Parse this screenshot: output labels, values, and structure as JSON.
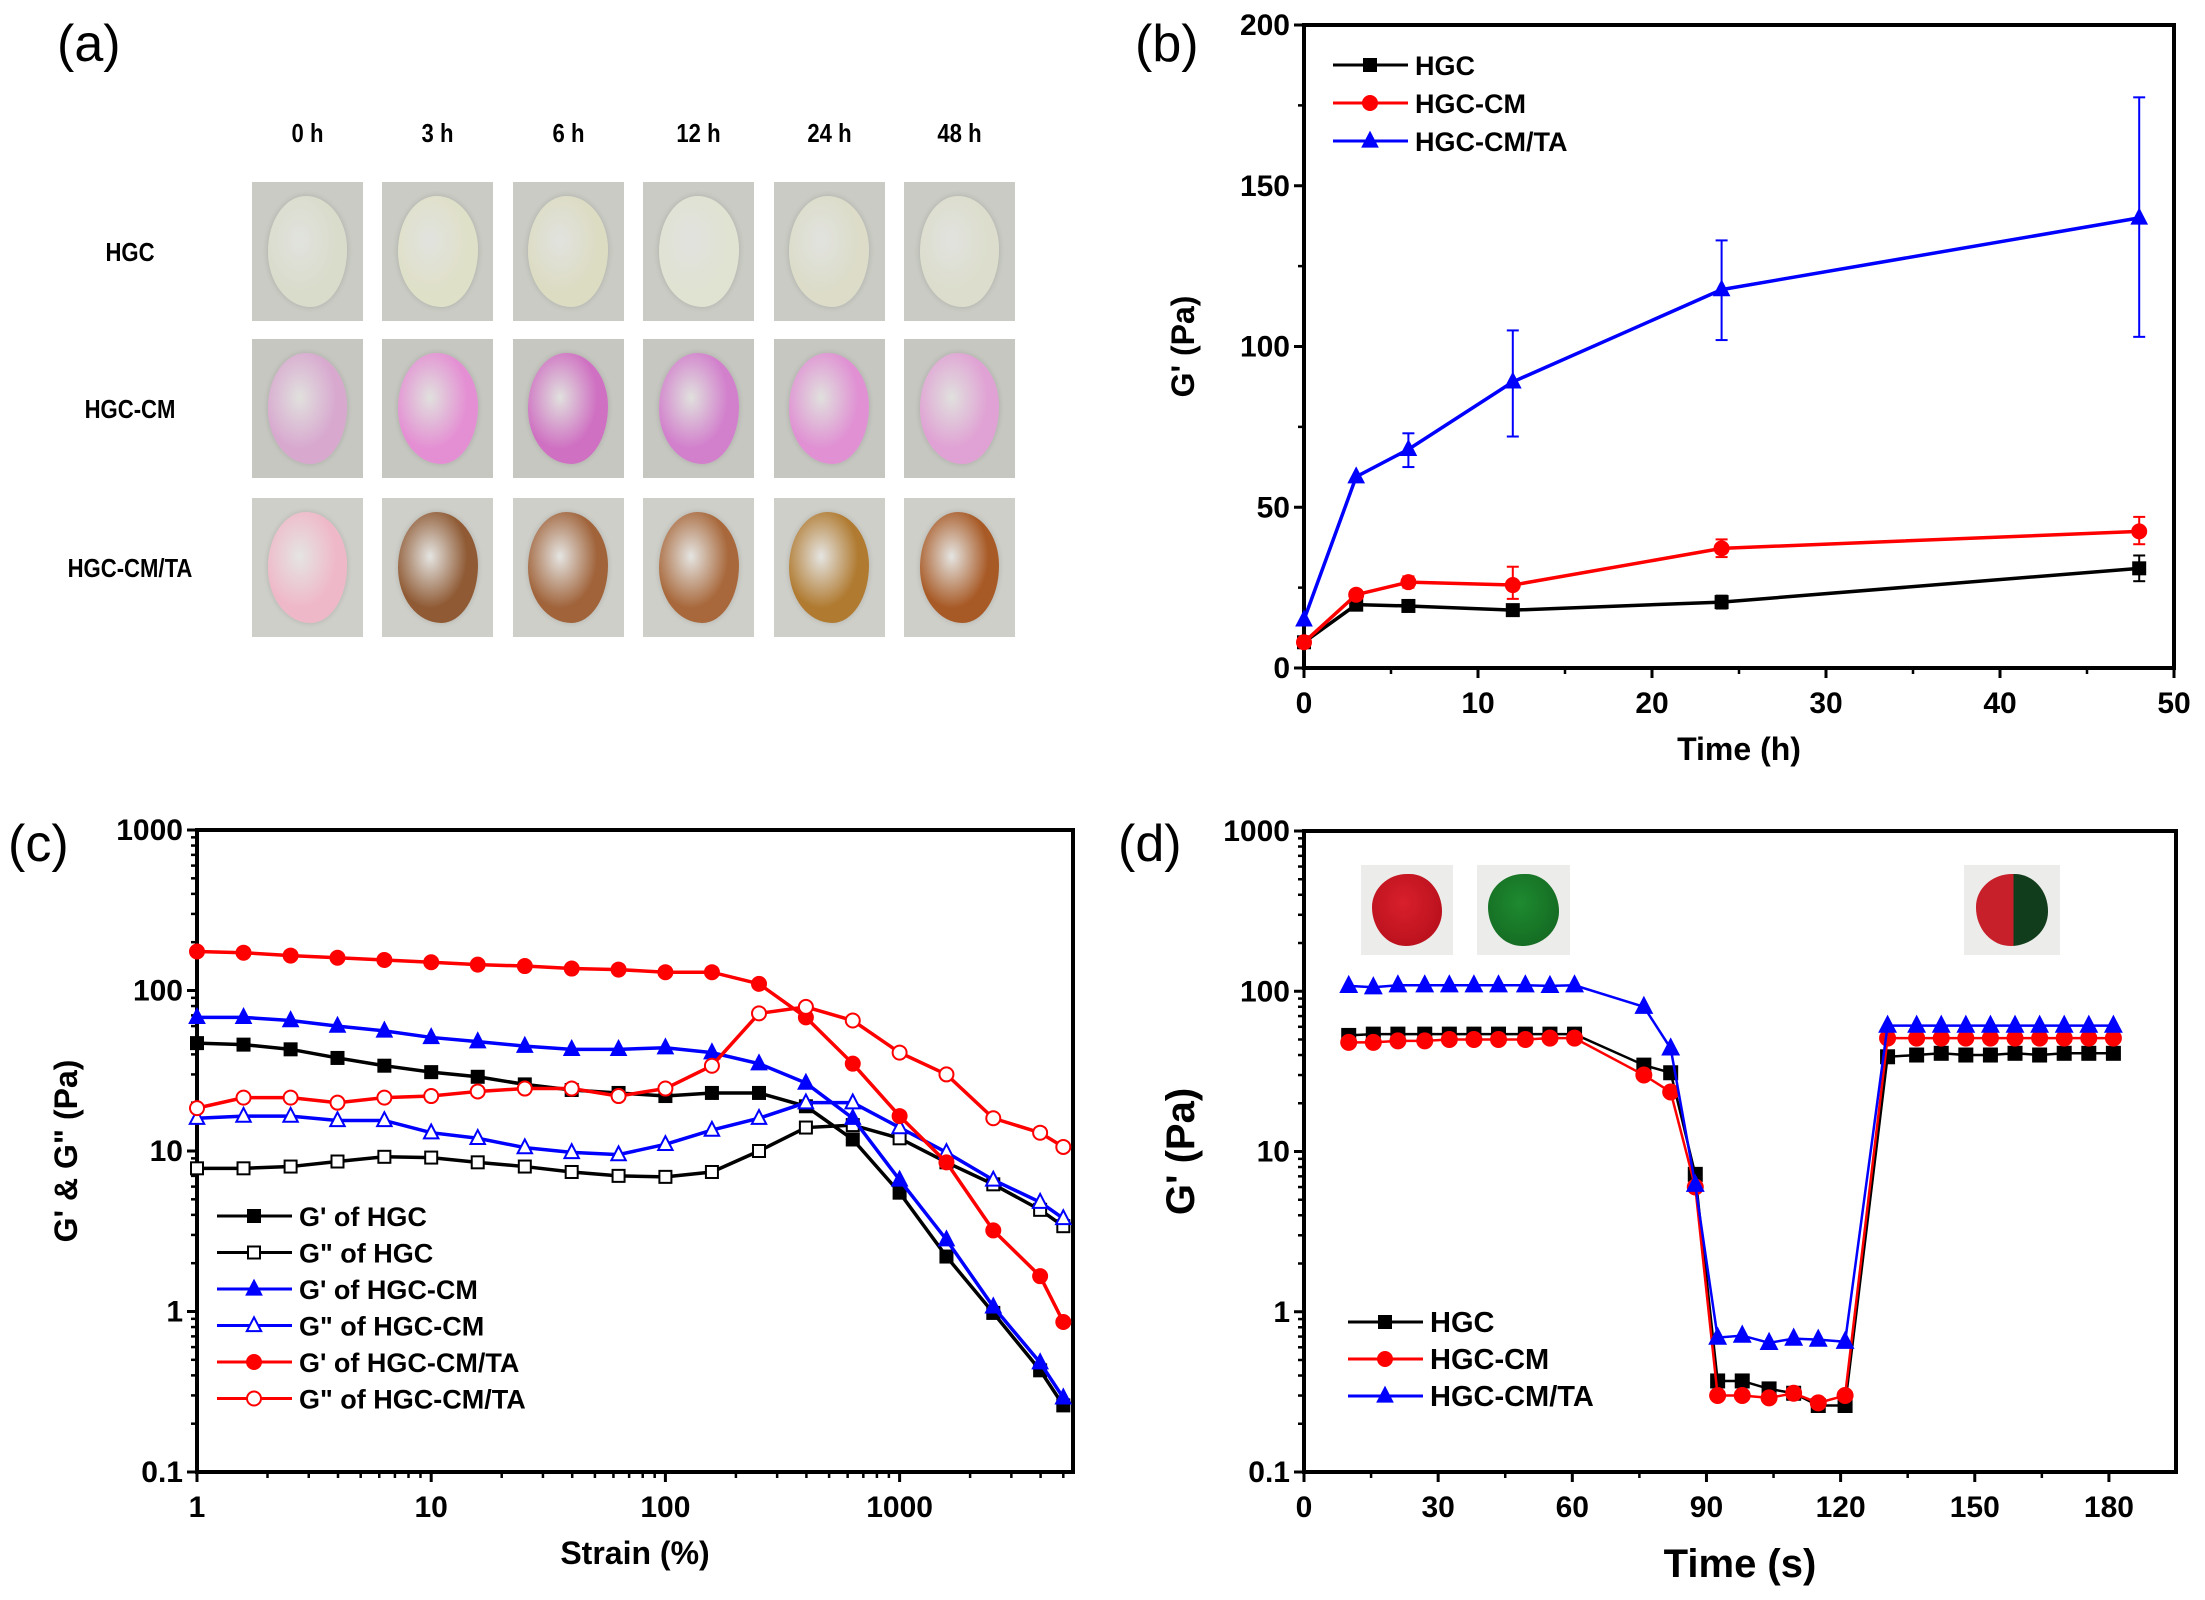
{
  "panel_labels": {
    "a": "(a)",
    "b": "(b)",
    "c": "(c)",
    "d": "(d)"
  },
  "photo_grid": {
    "columns": [
      "0 h",
      "3 h",
      "6 h",
      "12 h",
      "24 h",
      "48 h"
    ],
    "rows": [
      {
        "label": "HGC",
        "colors": [
          "#d9dccb",
          "#dfe0c8",
          "#dcdcc3",
          "#e0e2d2",
          "#dcdcc9",
          "#dcddcc"
        ],
        "bg": "#c9cbc4"
      },
      {
        "label": "HGC-CM",
        "colors": [
          "#d8a8cf",
          "#e48fd3",
          "#cf70c2",
          "#d27fcc",
          "#e090d3",
          "#e0a1d4"
        ],
        "bg": "#c7c7c2"
      },
      {
        "label": "HGC-CM/TA",
        "colors": [
          "#efb8c8",
          "#8f5a34",
          "#a0633a",
          "#a8683b",
          "#b07a30",
          "#a85a26"
        ],
        "bg": "#cfcfca"
      }
    ]
  },
  "insets_d": [
    {
      "name": "red-gel",
      "color": "#d8202c"
    },
    {
      "name": "green-gel",
      "color": "#1e8a30"
    },
    {
      "name": "healed-gel",
      "color_left": "#c8202a",
      "color_right": "#123d1c"
    }
  ],
  "colors": {
    "HGC": "#000000",
    "HGC-CM": "#ff0000",
    "HGC-CM/TA": "#0000ff"
  },
  "chart_data": [
    {
      "id": "b",
      "type": "line",
      "title": "",
      "xlabel": "Time (h)",
      "ylabel": "G' (Pa)",
      "xlim": [
        0,
        50
      ],
      "ylim": [
        0,
        200
      ],
      "xticks": [
        0,
        10,
        20,
        30,
        40,
        50
      ],
      "yticks": [
        0,
        50,
        100,
        150,
        200
      ],
      "legend_position": "top-left",
      "x": [
        0,
        3,
        6,
        12,
        24,
        48
      ],
      "series": [
        {
          "name": "HGC",
          "color": "#000000",
          "marker": "square",
          "values": [
            8,
            19.7,
            19.3,
            18,
            20.5,
            31
          ],
          "err_low": [
            null,
            null,
            null,
            null,
            18.5,
            27
          ],
          "err_high": [
            null,
            null,
            null,
            null,
            22.5,
            35
          ]
        },
        {
          "name": "HGC-CM",
          "color": "#ff0000",
          "marker": "circle",
          "values": [
            8,
            22.8,
            26.7,
            25.8,
            37.2,
            42.5
          ],
          "err_low": [
            null,
            null,
            25,
            21.5,
            34.5,
            38.5
          ],
          "err_high": [
            null,
            null,
            28.5,
            31.5,
            40,
            47
          ]
        },
        {
          "name": "HGC-CM/TA",
          "color": "#0000ff",
          "marker": "triangle",
          "values": [
            15,
            59.5,
            68,
            89,
            117.7,
            140
          ],
          "err_low": [
            null,
            null,
            62.5,
            72,
            102,
            103
          ],
          "err_high": [
            null,
            null,
            73,
            105,
            133,
            177.5
          ]
        }
      ]
    },
    {
      "id": "c",
      "type": "line",
      "title": "",
      "xlabel": "Strain (%)",
      "ylabel": "G' & G\" (Pa)",
      "xscale": "log",
      "yscale": "log",
      "xlim": [
        1,
        5500
      ],
      "ylim": [
        0.1,
        1000
      ],
      "xticks": [
        "1",
        "10",
        "100",
        "1000"
      ],
      "yticks": [
        "0.1",
        "1",
        "10",
        "100",
        "1000"
      ],
      "legend_position": "bottom-left",
      "x": [
        1,
        1.58,
        2.51,
        3.98,
        6.31,
        10,
        15.8,
        25.1,
        39.8,
        63.1,
        100,
        158,
        251,
        398,
        631,
        1000,
        1585,
        2512,
        3981,
        5000
      ],
      "series": [
        {
          "name": "G' of HGC",
          "color": "#000000",
          "marker": "square",
          "filled": true,
          "values": [
            47,
            46,
            43,
            38,
            34,
            31,
            29,
            26,
            24,
            23,
            22,
            23,
            23,
            19,
            11.8,
            5.5,
            2.2,
            0.98,
            0.43,
            0.26
          ]
        },
        {
          "name": "G\" of HGC",
          "color": "#000000",
          "marker": "square",
          "filled": false,
          "values": [
            7.8,
            7.8,
            8,
            8.6,
            9.2,
            9.1,
            8.5,
            8,
            7.4,
            7,
            6.9,
            7.4,
            10,
            14,
            14.5,
            12,
            8.5,
            6.2,
            4.3,
            3.4
          ]
        },
        {
          "name": "G' of HGC-CM",
          "color": "#0000ff",
          "marker": "triangle",
          "filled": true,
          "values": [
            68,
            68,
            65,
            60,
            56,
            51,
            48,
            45,
            43,
            43,
            44,
            41,
            35,
            26.5,
            16,
            6.6,
            2.8,
            1.07,
            0.48,
            0.29
          ]
        },
        {
          "name": "G\" of HGC-CM",
          "color": "#0000ff",
          "marker": "triangle",
          "filled": false,
          "values": [
            16,
            16.5,
            16.5,
            15.5,
            15.5,
            13,
            12,
            10.5,
            9.8,
            9.5,
            11,
            13.5,
            16,
            20,
            20,
            14,
            9.8,
            6.6,
            4.8,
            3.8
          ]
        },
        {
          "name": "G' of HGC-CM/TA",
          "color": "#ff0000",
          "marker": "circle",
          "filled": true,
          "values": [
            175,
            172,
            165,
            160,
            155,
            150,
            145,
            142,
            137,
            135,
            130,
            130,
            110,
            68,
            35,
            16.5,
            8.5,
            3.2,
            1.66,
            0.86
          ]
        },
        {
          "name": "G\" of HGC-CM/TA",
          "color": "#ff0000",
          "marker": "circle",
          "filled": false,
          "values": [
            18.5,
            21.5,
            21.5,
            20,
            21.5,
            22,
            23.5,
            24.5,
            24.5,
            22,
            24.5,
            34,
            72,
            79,
            65,
            41,
            30,
            16,
            13,
            10.6
          ]
        }
      ]
    },
    {
      "id": "d",
      "type": "line",
      "title": "",
      "xlabel": "Time (s)",
      "ylabel": "G' (Pa)",
      "yscale": "log",
      "xlim": [
        0,
        195
      ],
      "ylim": [
        0.1,
        1000
      ],
      "xticks": [
        0,
        30,
        60,
        90,
        120,
        150,
        180
      ],
      "yticks": [
        "0.1",
        "1",
        "10",
        "100",
        "1000"
      ],
      "legend_position": "bottom-left",
      "x": [
        10,
        15.5,
        21,
        27,
        32.5,
        38,
        43.5,
        49.5,
        55,
        60.5,
        76,
        82,
        87.5,
        92.5,
        98,
        104,
        109.5,
        115,
        121,
        130.5,
        137,
        142.5,
        148,
        153.5,
        159,
        164.5,
        170,
        175.5,
        181
      ],
      "series": [
        {
          "name": "HGC",
          "color": "#000000",
          "marker": "square",
          "values": [
            53,
            54,
            54,
            54,
            54,
            54,
            54,
            54,
            54,
            54,
            34.6,
            31,
            7.2,
            0.37,
            0.37,
            0.33,
            0.31,
            0.26,
            0.26,
            39,
            40,
            41,
            40,
            40,
            41,
            40,
            41,
            41,
            41
          ]
        },
        {
          "name": "HGC-CM",
          "color": "#ff0000",
          "marker": "circle",
          "values": [
            48,
            48,
            49,
            49,
            50,
            50,
            50,
            50,
            51,
            51,
            30,
            23.5,
            6,
            0.3,
            0.3,
            0.29,
            0.31,
            0.27,
            0.3,
            51,
            51,
            51,
            51,
            51,
            51,
            51,
            51,
            51,
            51
          ]
        },
        {
          "name": "HGC-CM/TA",
          "color": "#0000ff",
          "marker": "triangle",
          "values": [
            108,
            106,
            109,
            109,
            109,
            109,
            109,
            109,
            108,
            109,
            80,
            44,
            6.2,
            0.69,
            0.71,
            0.64,
            0.68,
            0.67,
            0.65,
            61,
            61,
            61,
            61,
            61,
            61,
            61,
            61,
            61,
            61
          ]
        }
      ]
    }
  ]
}
